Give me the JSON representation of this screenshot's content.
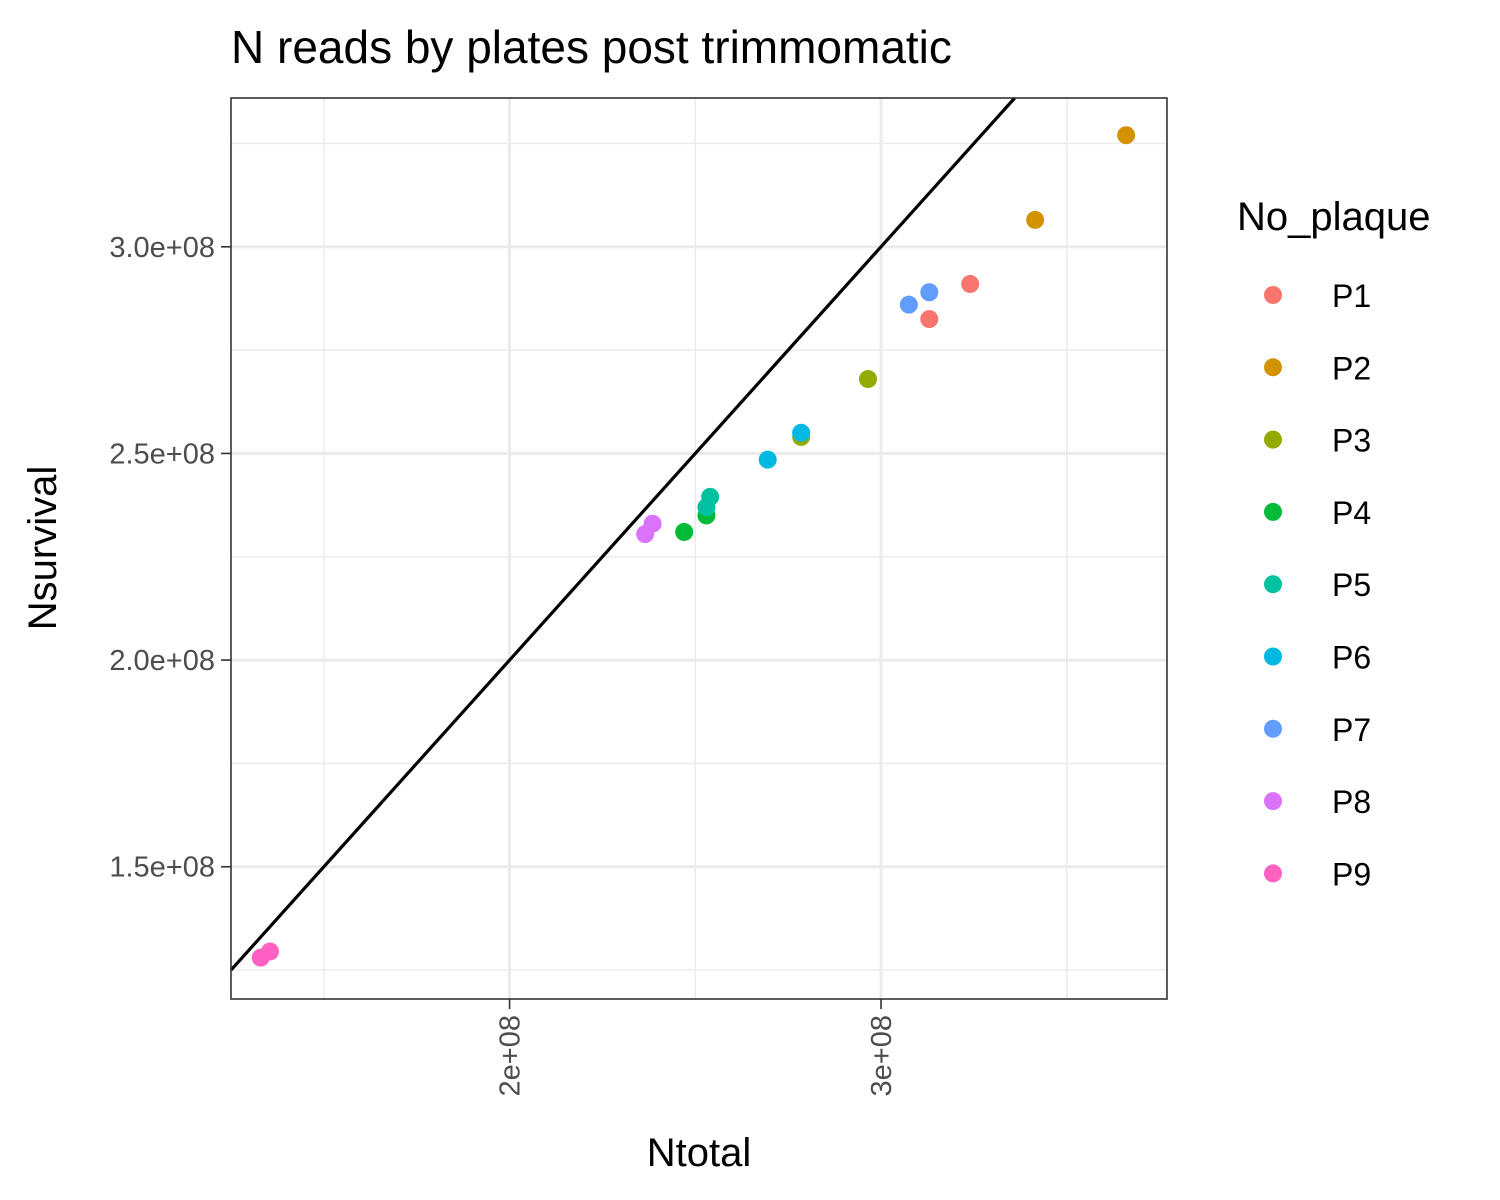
{
  "chart_data": {
    "type": "scatter",
    "title": "N reads by plates post trimmomatic",
    "xlabel": "Ntotal",
    "ylabel": "Nsurvival",
    "xlim": [
      125000000,
      377000000
    ],
    "ylim": [
      118000000,
      336000000
    ],
    "x_ticks": [
      200000000,
      300000000
    ],
    "x_tick_labels": [
      "2e+08",
      "3e+08"
    ],
    "y_ticks": [
      150000000,
      200000000,
      250000000,
      300000000
    ],
    "y_tick_labels": [
      "1.5e+08",
      "2.0e+08",
      "2.5e+08",
      "3.0e+08"
    ],
    "grid": true,
    "legend_title": "No_plaque",
    "legend_position": "right",
    "reference_line": {
      "intercept": 0,
      "slope": 1
    },
    "series": [
      {
        "name": "P1",
        "color": "#F8766D",
        "points": [
          [
            324000000,
            291000000
          ],
          [
            313000000,
            282500000
          ]
        ]
      },
      {
        "name": "P2",
        "color": "#D39200",
        "points": [
          [
            366000000,
            327000000
          ],
          [
            341500000,
            306500000
          ]
        ]
      },
      {
        "name": "P3",
        "color": "#93AA00",
        "points": [
          [
            296500000,
            268000000
          ],
          [
            278500000,
            254000000
          ]
        ]
      },
      {
        "name": "P4",
        "color": "#00BA38",
        "points": [
          [
            247000000,
            231000000
          ],
          [
            253000000,
            235000000
          ]
        ]
      },
      {
        "name": "P5",
        "color": "#00C19F",
        "points": [
          [
            254000000,
            239500000
          ],
          [
            253000000,
            237000000
          ]
        ]
      },
      {
        "name": "P6",
        "color": "#00B9E3",
        "points": [
          [
            278500000,
            255000000
          ],
          [
            269500000,
            248500000
          ]
        ]
      },
      {
        "name": "P7",
        "color": "#619CFF",
        "points": [
          [
            313000000,
            289000000
          ],
          [
            307500000,
            286000000
          ]
        ]
      },
      {
        "name": "P8",
        "color": "#DB72FB",
        "points": [
          [
            238500000,
            233000000
          ],
          [
            236500000,
            230500000
          ]
        ]
      },
      {
        "name": "P9",
        "color": "#FF61C3",
        "points": [
          [
            135500000,
            129500000
          ],
          [
            133000000,
            128000000
          ]
        ]
      }
    ]
  }
}
